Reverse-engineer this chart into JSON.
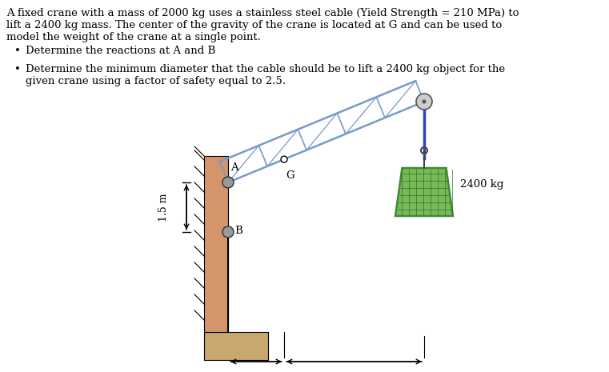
{
  "title_line1": "A fixed crane with a mass of 2000 kg uses a stainless steel cable (Yield Strength = 210 MPa) to",
  "title_line2": "lift a 2400 kg mass. The center of the gravity of the crane is located at G and can be used to",
  "title_line3": "model the weight of the crane at a single point.",
  "bullet1": "Determine the reactions at A and B",
  "bullet2a": "Determine the minimum diameter that the cable should be to lift a 2400 kg object for the",
  "bullet2b": "given crane using a factor of safety equal to 2.5.",
  "bg_color": "#ffffff",
  "wall_color": "#d4956a",
  "base_color": "#c8a870",
  "crane_color": "#7799cc",
  "cable_color": "#2244cc",
  "mass_fill": "#77bb55",
  "mass_border": "#448833",
  "pin_color": "#999999",
  "text_color": "#000000",
  "font_size": 9.5
}
